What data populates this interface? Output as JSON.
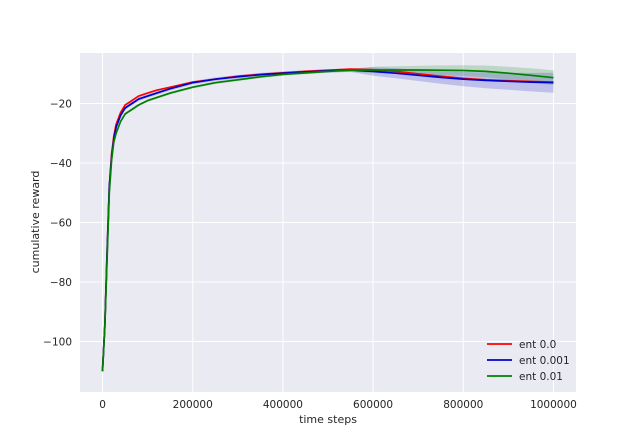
{
  "chart_data": {
    "type": "line",
    "title": "",
    "xlabel": "time steps",
    "ylabel": "cumulative reward",
    "xlim": [
      -50000,
      1050000
    ],
    "ylim": [
      -117,
      -3
    ],
    "xticks": [
      0,
      200000,
      400000,
      600000,
      800000,
      1000000
    ],
    "xtick_labels": [
      "0",
      "200000",
      "400000",
      "600000",
      "800000",
      "1000000"
    ],
    "yticks": [
      -100,
      -80,
      -60,
      -40,
      -20
    ],
    "ytick_labels": [
      "−100",
      "−80",
      "−60",
      "−40",
      "−20"
    ],
    "grid": true,
    "legend_position": "bottom-right",
    "series": [
      {
        "name": "ent 0.0",
        "color": "#ff0000",
        "x": [
          0,
          5000,
          10000,
          15000,
          20000,
          25000,
          30000,
          40000,
          50000,
          60000,
          70000,
          80000,
          100000,
          120000,
          150000,
          200000,
          250000,
          300000,
          350000,
          400000,
          450000,
          500000,
          550000,
          600000,
          650000,
          700000,
          750000,
          800000,
          850000,
          900000,
          950000,
          1000000
        ],
        "y": [
          -110,
          -95,
          -70,
          -48,
          -37,
          -31,
          -27,
          -23,
          -20.5,
          -19.5,
          -18.5,
          -17.5,
          -16.5,
          -15.5,
          -14.5,
          -12.8,
          -11.8,
          -10.8,
          -10.2,
          -9.7,
          -9.2,
          -8.8,
          -8.4,
          -8.6,
          -9.2,
          -10,
          -10.8,
          -11.5,
          -12,
          -12.3,
          -12.6,
          -12.8
        ]
      },
      {
        "name": "ent 0.001",
        "color": "#0000cc",
        "band": 1.2,
        "x": [
          0,
          5000,
          10000,
          15000,
          20000,
          25000,
          30000,
          40000,
          50000,
          60000,
          70000,
          80000,
          100000,
          120000,
          150000,
          200000,
          250000,
          300000,
          350000,
          400000,
          450000,
          500000,
          550000,
          600000,
          650000,
          700000,
          750000,
          800000,
          850000,
          900000,
          950000,
          1000000
        ],
        "y": [
          -110,
          -95,
          -70,
          -48,
          -38,
          -32,
          -28,
          -24,
          -21.5,
          -20.5,
          -19.5,
          -18.5,
          -17.5,
          -16.5,
          -15,
          -13,
          -11.8,
          -11,
          -10.3,
          -9.8,
          -9.4,
          -9,
          -8.8,
          -9.2,
          -9.8,
          -10.5,
          -11.2,
          -11.8,
          -12.2,
          -12.5,
          -12.8,
          -13
        ]
      },
      {
        "name": "ent 0.01",
        "color": "#007f00",
        "band": 0.9,
        "x": [
          0,
          5000,
          10000,
          15000,
          20000,
          25000,
          30000,
          40000,
          50000,
          60000,
          70000,
          80000,
          100000,
          120000,
          150000,
          200000,
          250000,
          300000,
          350000,
          400000,
          450000,
          500000,
          550000,
          600000,
          650000,
          700000,
          750000,
          800000,
          850000,
          900000,
          950000,
          1000000
        ],
        "y": [
          -110,
          -95,
          -72,
          -50,
          -39,
          -33,
          -30,
          -26,
          -23.5,
          -22.5,
          -21.5,
          -20.5,
          -19,
          -18,
          -16.5,
          -14.5,
          -13,
          -12,
          -11,
          -10.2,
          -9.7,
          -9.2,
          -8.8,
          -8.7,
          -8.7,
          -8.7,
          -8.8,
          -8.9,
          -9.2,
          -9.8,
          -10.5,
          -11.3
        ]
      }
    ]
  }
}
